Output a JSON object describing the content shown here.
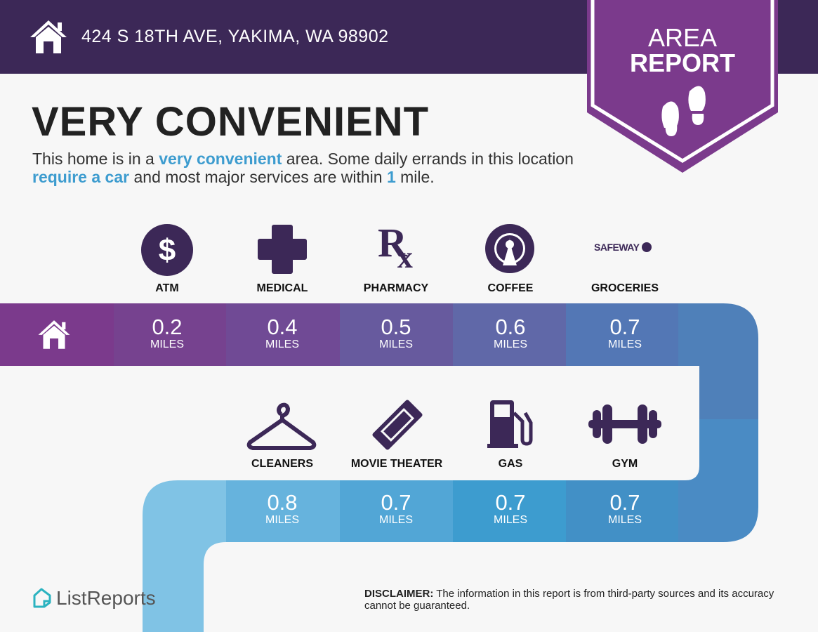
{
  "header": {
    "address": "424 S 18TH AVE, YAKIMA, WA 98902",
    "icon": "home-icon"
  },
  "badge": {
    "line1": "AREA",
    "line2": "REPORT",
    "icon": "footprints-icon",
    "color": "#7b3a8c"
  },
  "headline": "VERY CONVENIENT",
  "description": {
    "p1": "This home is in a ",
    "h1": "very convenient",
    "p2": " area. Some daily errands in this location ",
    "h2": "require a car",
    "p3": " and most major services are within ",
    "h3": "1",
    "p4": " mile."
  },
  "unit": "MILES",
  "top_row": [
    {
      "label": "ATM",
      "distance": "0.2",
      "icon": "dollar-icon",
      "color": "#76428f"
    },
    {
      "label": "MEDICAL",
      "distance": "0.4",
      "icon": "medical-cross-icon",
      "color": "#704a95"
    },
    {
      "label": "PHARMACY",
      "distance": "0.5",
      "icon": "rx-icon",
      "color": "#675a9e"
    },
    {
      "label": "COFFEE",
      "distance": "0.6",
      "icon": "starbucks-logo-icon",
      "color": "#6068a8"
    },
    {
      "label": "GROCERIES",
      "distance": "0.7",
      "icon": "safeway-logo-icon",
      "logo_text": "SAFEWAY",
      "color": "#5377b5"
    }
  ],
  "bottom_row": [
    {
      "label": "CLEANERS",
      "distance": "0.8",
      "icon": "hanger-icon",
      "color": "#66b3dd"
    },
    {
      "label": "MOVIE THEATER",
      "distance": "0.7",
      "icon": "ticket-icon",
      "color": "#52a6d6"
    },
    {
      "label": "GAS",
      "distance": "0.7",
      "icon": "gas-pump-icon",
      "color": "#3d9ccf"
    },
    {
      "label": "GYM",
      "distance": "0.7",
      "icon": "dumbbell-icon",
      "color": "#4290c6"
    }
  ],
  "footer": {
    "logo": "ListReports",
    "disclaimer_label": "DISCLAIMER:",
    "disclaimer": " The information in this report is from third-party sources and its accuracy cannot be guaranteed."
  }
}
